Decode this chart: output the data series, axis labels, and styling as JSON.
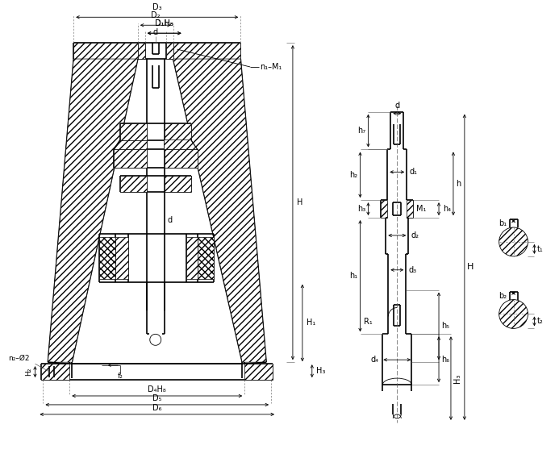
{
  "bg_color": "#ffffff",
  "line_color": "#000000",
  "fig_width": 6.93,
  "fig_height": 5.68,
  "dpi": 100,
  "labels": {
    "D3": "D₃",
    "D2": "D₂",
    "D1H8": "D₁H₈",
    "d_top": "d",
    "n1M1": "n₁–M₁",
    "D4H8": "D₄H₈",
    "D5": "D₅",
    "D6": "D₆",
    "H2": "H₂",
    "H1": "H₁",
    "H3": "H₃",
    "H": "H",
    "n2phi2": "n₂–Ø2",
    "f2": "f₂",
    "h7": "h₇",
    "h2": "h₂",
    "h3": "h₃",
    "h1": "h₁",
    "h4": "h₄",
    "h5": "h₅",
    "h6": "h₆",
    "h": "h",
    "d1": "d₁",
    "d2": "d₂",
    "d3": "d₃",
    "d4": "d₄",
    "M1": "M₁",
    "R1": "R₁",
    "b1": "b₁",
    "b2": "b₂",
    "t1": "t₁",
    "t2": "t₂",
    "H3r": "H₃",
    "d": "d"
  }
}
